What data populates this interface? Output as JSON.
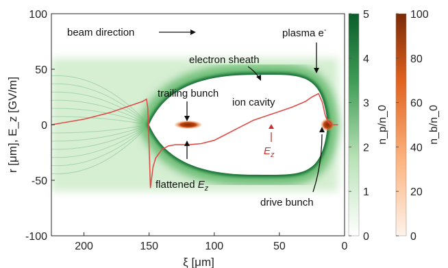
{
  "chart_data": {
    "type": "heatmap",
    "title": "",
    "xlabel": "ξ [μm]",
    "ylabel": "r [μm], E_z [GV/m]",
    "xlim": [
      225,
      0
    ],
    "ylim": [
      -100,
      100
    ],
    "x_ticks": [
      200,
      150,
      100,
      50,
      0
    ],
    "y_ticks": [
      -100,
      -50,
      0,
      50,
      100
    ],
    "x_tick_labels": [
      "200",
      "150",
      "100",
      "50",
      "0"
    ],
    "y_tick_labels": [
      "-100",
      "-50",
      "0",
      "50",
      "100"
    ],
    "grid": false,
    "ion_cavity": {
      "front_xi": 13,
      "back_xi": 150,
      "max_radius": 45,
      "max_radius_xi": 70
    },
    "trailing_bunch": {
      "xi": 120,
      "r": 0,
      "density_peak": 100
    },
    "drive_bunch": {
      "xi": 13,
      "r": 0,
      "density_peak": 100
    },
    "series": [
      {
        "name": "E_z",
        "color": "#e04b47",
        "x": [
          225,
          200,
          180,
          165,
          155,
          152,
          151,
          150,
          149,
          147,
          145,
          140,
          135,
          130,
          125,
          120,
          110,
          100,
          90,
          80,
          70,
          60,
          50,
          40,
          30,
          25,
          20,
          17,
          15,
          13,
          11,
          9,
          7,
          5
        ],
        "y": [
          0,
          5,
          11,
          17,
          21,
          23,
          15,
          -20,
          -57,
          -38,
          -30,
          -22,
          -19,
          -18,
          -18,
          -18,
          -17,
          -14,
          -8,
          -2,
          4,
          8,
          12,
          16,
          21,
          25,
          28,
          20,
          9,
          3,
          0.5,
          0,
          0,
          0
        ]
      }
    ],
    "colorbars": [
      {
        "label": "n_p/n_0",
        "min": 0,
        "max": 5,
        "ticks": [
          "0",
          "1",
          "2",
          "3",
          "4",
          "5"
        ],
        "colors": [
          "#ffffff",
          "#0b5e2b"
        ]
      },
      {
        "label": "n_b/n_0",
        "min": 0,
        "max": 100,
        "ticks": [
          "0",
          "20",
          "40",
          "60",
          "80",
          "100"
        ],
        "colors": [
          "#fff3ea",
          "#7a2a08"
        ]
      }
    ],
    "annotations": {
      "beam_direction": "beam direction",
      "plasma_e": "plasma e",
      "plasma_e_sup": "-",
      "electron_sheath": "electron sheath",
      "trailing_bunch": "trailing bunch",
      "ion_cavity": "ion cavity",
      "ez_label": "E",
      "ez_sub": "z",
      "flattened": "flattened ",
      "drive_bunch": "drive bunch"
    }
  }
}
